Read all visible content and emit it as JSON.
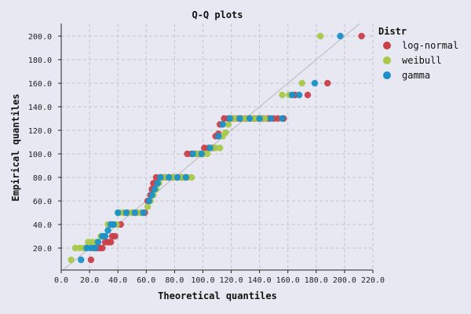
{
  "chart_data": {
    "type": "scatter",
    "title": "Q-Q plots",
    "xlabel": "Theoretical quantiles",
    "ylabel": "Empirical quantiles",
    "xlim": [
      0,
      220
    ],
    "ylim": [
      0,
      210
    ],
    "x_ticks": [
      "0.0",
      "20.0",
      "40.0",
      "60.0",
      "80.0",
      "100.0",
      "120.0",
      "140.0",
      "160.0",
      "180.0",
      "200.0",
      "220.0"
    ],
    "y_ticks": [
      "20.0",
      "40.0",
      "60.0",
      "80.0",
      "100.0",
      "120.0",
      "140.0",
      "160.0",
      "180.0",
      "200.0"
    ],
    "grid": true,
    "reference_line": {
      "x": [
        0,
        220
      ],
      "y": [
        0,
        220
      ]
    },
    "legend": {
      "title": "Distr",
      "placement": "outside-right"
    },
    "series": [
      {
        "name": "log-normal",
        "color": "#c8404a",
        "points": [
          [
            21,
            10
          ],
          [
            23,
            20
          ],
          [
            25,
            20
          ],
          [
            27,
            20
          ],
          [
            29,
            20
          ],
          [
            31,
            25
          ],
          [
            33,
            25
          ],
          [
            35,
            25
          ],
          [
            36,
            30
          ],
          [
            38,
            30
          ],
          [
            42,
            40
          ],
          [
            44,
            50
          ],
          [
            47,
            50
          ],
          [
            50,
            50
          ],
          [
            53,
            50
          ],
          [
            56,
            50
          ],
          [
            59,
            50
          ],
          [
            61,
            60
          ],
          [
            63,
            65
          ],
          [
            64,
            70
          ],
          [
            65,
            75
          ],
          [
            67,
            80
          ],
          [
            70,
            80
          ],
          [
            73,
            80
          ],
          [
            76,
            80
          ],
          [
            79,
            80
          ],
          [
            82,
            80
          ],
          [
            85,
            80
          ],
          [
            88,
            80
          ],
          [
            89,
            100
          ],
          [
            92,
            100
          ],
          [
            95,
            100
          ],
          [
            98,
            100
          ],
          [
            101,
            105
          ],
          [
            104,
            105
          ],
          [
            107,
            105
          ],
          [
            109,
            115
          ],
          [
            111,
            117
          ],
          [
            112,
            125
          ],
          [
            115,
            130
          ],
          [
            118,
            130
          ],
          [
            121,
            130
          ],
          [
            124,
            130
          ],
          [
            127,
            130
          ],
          [
            130,
            130
          ],
          [
            133,
            130
          ],
          [
            136,
            130
          ],
          [
            139,
            130
          ],
          [
            142,
            130
          ],
          [
            146,
            130
          ],
          [
            150,
            130
          ],
          [
            153,
            130
          ],
          [
            157,
            130
          ],
          [
            165,
            150
          ],
          [
            174,
            150
          ],
          [
            188,
            160
          ],
          [
            212,
            200
          ]
        ]
      },
      {
        "name": "weibull",
        "color": "#a8c84a",
        "points": [
          [
            7,
            10
          ],
          [
            10,
            20
          ],
          [
            13,
            20
          ],
          [
            16,
            20
          ],
          [
            19,
            25
          ],
          [
            22,
            25
          ],
          [
            25,
            25
          ],
          [
            28,
            30
          ],
          [
            30,
            30
          ],
          [
            33,
            40
          ],
          [
            36,
            40
          ],
          [
            39,
            40
          ],
          [
            41,
            50
          ],
          [
            44,
            50
          ],
          [
            47,
            50
          ],
          [
            50,
            50
          ],
          [
            53,
            50
          ],
          [
            56,
            50
          ],
          [
            58,
            50
          ],
          [
            61,
            55
          ],
          [
            63,
            60
          ],
          [
            65,
            65
          ],
          [
            67,
            70
          ],
          [
            69,
            75
          ],
          [
            71,
            80
          ],
          [
            74,
            80
          ],
          [
            77,
            80
          ],
          [
            80,
            80
          ],
          [
            83,
            80
          ],
          [
            86,
            80
          ],
          [
            89,
            80
          ],
          [
            92,
            80
          ],
          [
            94,
            100
          ],
          [
            97,
            100
          ],
          [
            100,
            100
          ],
          [
            103,
            100
          ],
          [
            106,
            105
          ],
          [
            109,
            105
          ],
          [
            112,
            105
          ],
          [
            114,
            115
          ],
          [
            116,
            118
          ],
          [
            118,
            125
          ],
          [
            120,
            130
          ],
          [
            123,
            130
          ],
          [
            126,
            130
          ],
          [
            129,
            130
          ],
          [
            132,
            130
          ],
          [
            135,
            130
          ],
          [
            138,
            130
          ],
          [
            141,
            130
          ],
          [
            144,
            130
          ],
          [
            156,
            150
          ],
          [
            161,
            150
          ],
          [
            170,
            160
          ],
          [
            183,
            200
          ]
        ]
      },
      {
        "name": "gamma",
        "color": "#1a90c8",
        "points": [
          [
            14,
            10
          ],
          [
            18,
            20
          ],
          [
            21,
            20
          ],
          [
            24,
            20
          ],
          [
            26,
            25
          ],
          [
            29,
            30
          ],
          [
            31,
            30
          ],
          [
            33,
            35
          ],
          [
            35,
            40
          ],
          [
            37,
            40
          ],
          [
            40,
            50
          ],
          [
            46,
            50
          ],
          [
            52,
            50
          ],
          [
            58,
            50
          ],
          [
            62,
            60
          ],
          [
            64,
            65
          ],
          [
            66,
            70
          ],
          [
            68,
            75
          ],
          [
            70,
            80
          ],
          [
            76,
            80
          ],
          [
            82,
            80
          ],
          [
            88,
            80
          ],
          [
            93,
            100
          ],
          [
            99,
            100
          ],
          [
            105,
            105
          ],
          [
            111,
            115
          ],
          [
            114,
            125
          ],
          [
            119,
            130
          ],
          [
            126,
            130
          ],
          [
            133,
            130
          ],
          [
            140,
            130
          ],
          [
            148,
            130
          ],
          [
            156,
            130
          ],
          [
            163,
            150
          ],
          [
            168,
            150
          ],
          [
            179,
            160
          ],
          [
            197,
            200
          ]
        ]
      }
    ]
  }
}
